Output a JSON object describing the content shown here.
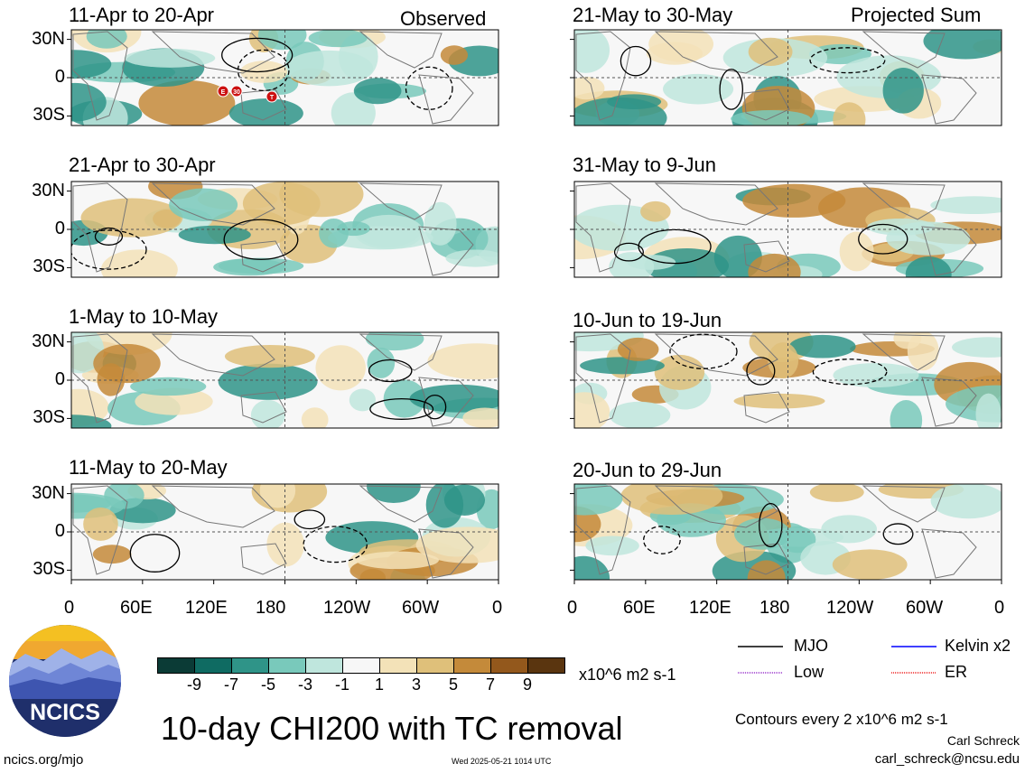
{
  "chart_data": {
    "type": "heatmap",
    "title": "10-day CHI200 with TC removal",
    "panels_observed_tag": "Observed",
    "panels_projected_tag": "Projected Sum",
    "observed_panels": [
      {
        "label": "11-Apr to 20-Apr"
      },
      {
        "label": "21-Apr to 30-Apr"
      },
      {
        "label": "1-May to 10-May"
      },
      {
        "label": "11-May to 20-May"
      }
    ],
    "projected_panels": [
      {
        "label": "21-May to 30-May"
      },
      {
        "label": "31-May to 9-Jun"
      },
      {
        "label": "10-Jun to 19-Jun"
      },
      {
        "label": "20-Jun to 29-Jun"
      }
    ],
    "y_ticks": [
      "30N",
      "0",
      "30S"
    ],
    "x_ticks": [
      "0",
      "60E",
      "120E",
      "180",
      "120W",
      "60W",
      "0"
    ],
    "colorbar": {
      "labels": [
        "-9",
        "-7",
        "-5",
        "-3",
        "-1",
        "1",
        "3",
        "5",
        "7",
        "9"
      ],
      "colors": [
        "#0b3b36",
        "#0f6b62",
        "#2f9488",
        "#79c9bb",
        "#bfe6dd",
        "#f7f7f7",
        "#f3e2b8",
        "#dfc07a",
        "#c48a3a",
        "#93581c",
        "#5a350f"
      ],
      "units": "x10^6 m2 s-1"
    },
    "tc_markers": [
      "E",
      "30",
      "T"
    ],
    "legend": [
      {
        "label": "MJO",
        "color": "#000000"
      },
      {
        "label": "Kelvin x2",
        "color": "#0000ff"
      },
      {
        "label": "Low",
        "color": "#9933cc"
      },
      {
        "label": "ER",
        "color": "#ee2222"
      }
    ],
    "contour_note": "Contours every 2 x10^6 m2 s-1"
  },
  "footer": {
    "author": "Carl Schreck",
    "email": "carl_schreck@ncsu.edu",
    "site": "ncics.org/mjo",
    "timestamp": "Wed 2025-05-21 1014 UTC",
    "logo_text": "NCICS"
  }
}
